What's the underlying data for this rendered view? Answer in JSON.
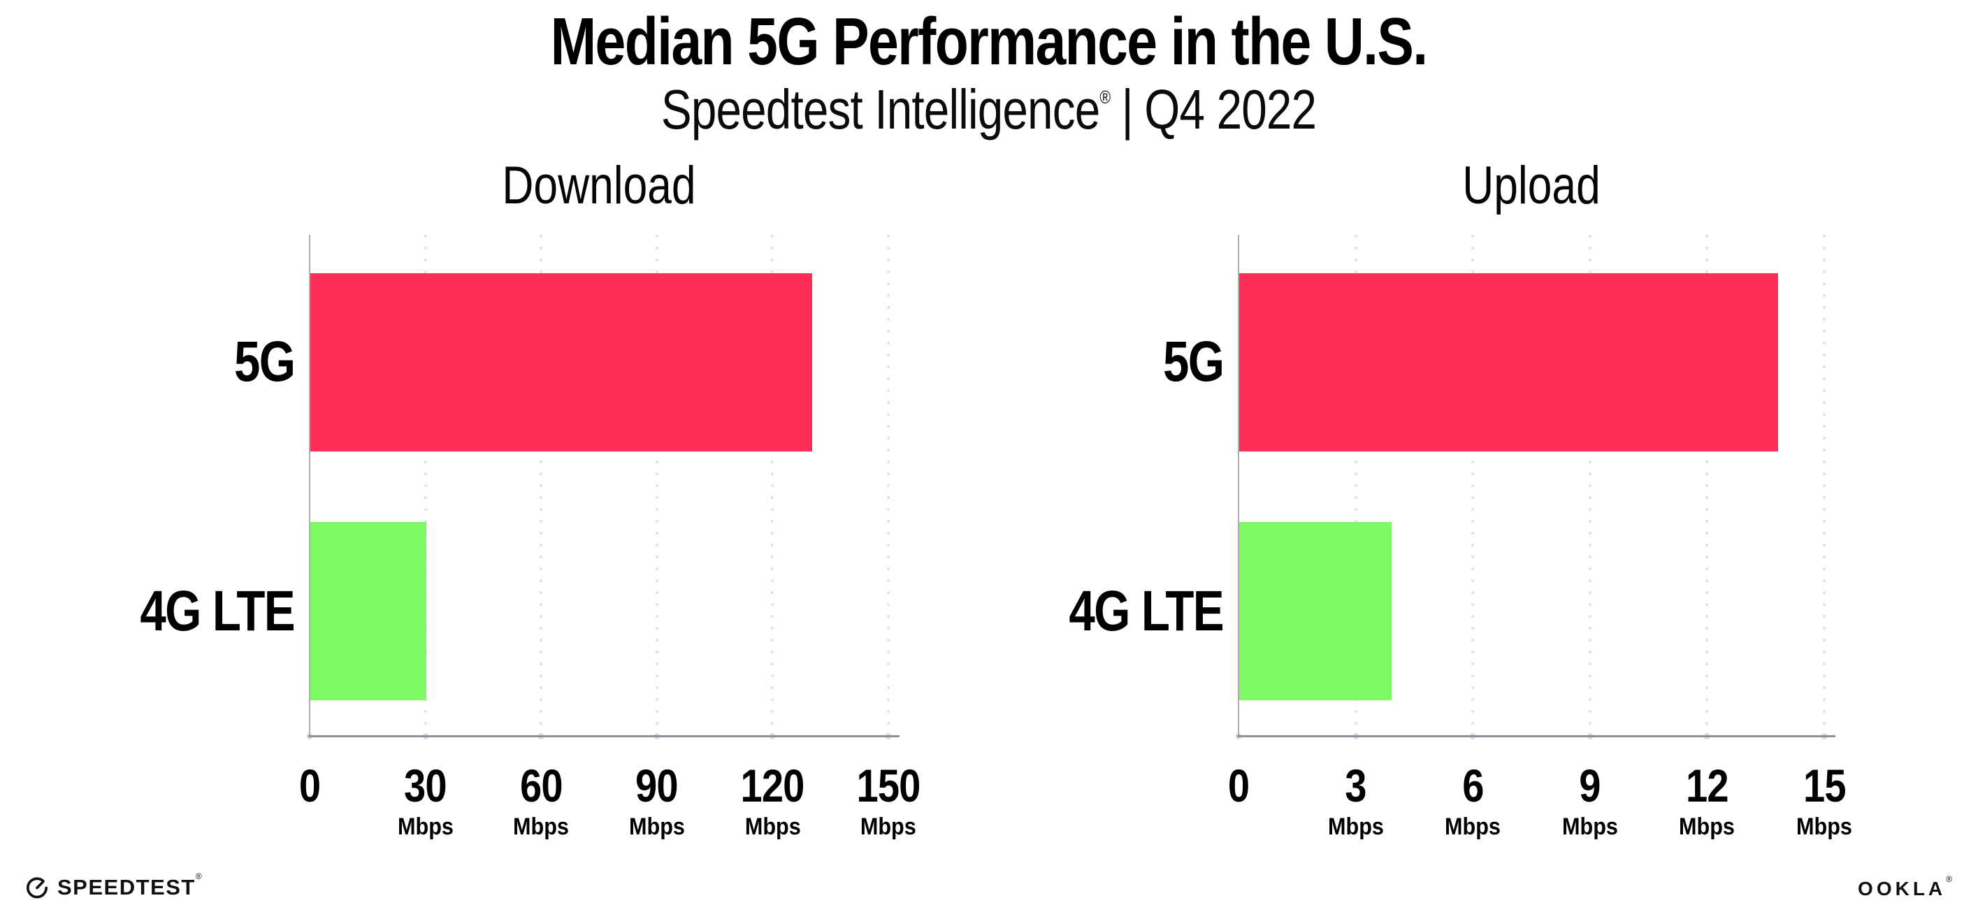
{
  "header": {
    "title": "Median 5G Performance in the U.S.",
    "subtitle_brand": "Speedtest Intelligence",
    "subtitle_reg": "®",
    "subtitle_separator": "|",
    "subtitle_period": "Q4 2022"
  },
  "chart_data": [
    {
      "type": "bar",
      "orientation": "horizontal",
      "title": "Download",
      "categories": [
        "5G",
        "4G LTE"
      ],
      "values": [
        130,
        30
      ],
      "unit": "Mbps",
      "xlim": [
        0,
        150
      ],
      "xticks": [
        0,
        30,
        60,
        90,
        120,
        150
      ],
      "grid": "vertical dotted",
      "legend": "none",
      "bar_colors": [
        "#FC2D57",
        "#7EF966"
      ]
    },
    {
      "type": "bar",
      "orientation": "horizontal",
      "title": "Upload",
      "categories": [
        "5G",
        "4G LTE"
      ],
      "values": [
        13.8,
        3.9
      ],
      "unit": "Mbps",
      "xlim": [
        0,
        15
      ],
      "xticks": [
        0,
        3,
        6,
        9,
        12,
        15
      ],
      "grid": "vertical dotted",
      "legend": "none",
      "bar_colors": [
        "#FC2D57",
        "#7EF966"
      ]
    }
  ],
  "footer": {
    "speedtest_label": "SPEEDTEST",
    "speedtest_reg": "®",
    "ookla_label": "OOKLA",
    "ookla_reg": "®"
  },
  "colors": {
    "bar_5g": "#FC2D57",
    "bar_4g_lte": "#7EF966",
    "gridline": "#E4E4F0",
    "axis_y": "#ACACB5",
    "axis_x": "#8F8F98",
    "text": "#000000",
    "background": "#FFFFFF"
  }
}
